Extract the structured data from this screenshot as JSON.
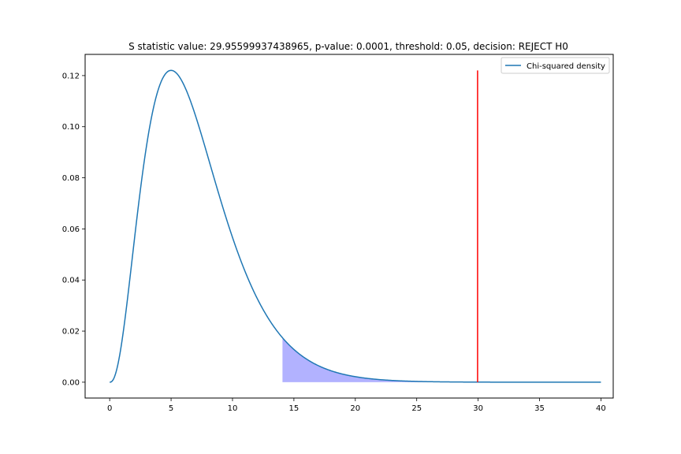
{
  "chart_data": {
    "type": "line",
    "title": "S statistic value: 29.95599937438965, p-value: 0.0001, threshold: 0.05, decision: REJECT H0",
    "xlabel": "",
    "ylabel": "",
    "xlim": [
      -2,
      41
    ],
    "ylim": [
      -0.0062,
      0.1283
    ],
    "x_ticks": [
      0,
      5,
      10,
      15,
      20,
      25,
      30,
      35,
      40
    ],
    "x_tick_labels": [
      "0",
      "5",
      "10",
      "15",
      "20",
      "25",
      "30",
      "35",
      "40"
    ],
    "y_ticks": [
      0.0,
      0.02,
      0.04,
      0.06,
      0.08,
      0.1,
      0.12
    ],
    "y_tick_labels": [
      "0.00",
      "0.02",
      "0.04",
      "0.06",
      "0.08",
      "0.10",
      "0.12"
    ],
    "grid": false,
    "legend": {
      "placement": "top-right",
      "entries": [
        "Chi-squared density"
      ]
    },
    "series": [
      {
        "name": "Chi-squared density",
        "color": "#1f77b4",
        "degrees_of_freedom": 7,
        "x_range": [
          0,
          40
        ]
      }
    ],
    "shaded_region": {
      "x_from": 14.07,
      "x_to": 40,
      "color": "#0000ff",
      "opacity": 0.3
    },
    "vertical_line": {
      "x": 29.95599937438965,
      "y_from": 0,
      "y_to": 0.122,
      "color": "#ff0000"
    }
  }
}
